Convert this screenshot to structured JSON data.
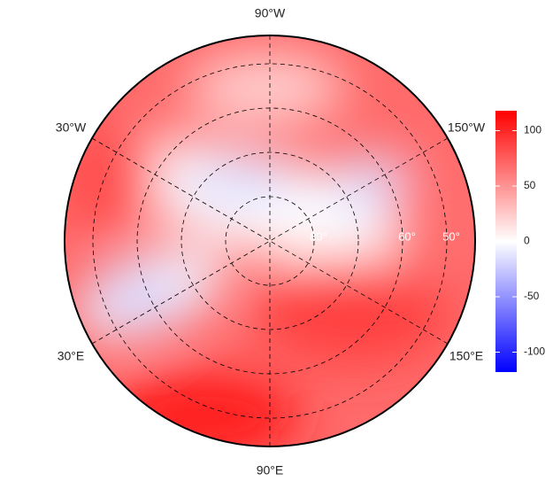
{
  "lon_labels": [
    "90°W",
    "30°W",
    "150°W",
    "30°E",
    "150°E",
    "90°E"
  ],
  "lat_labels": [
    "80°",
    "60°",
    "50°"
  ],
  "colorbar": {
    "lim": [
      -118,
      118
    ],
    "ticks": [
      100,
      50,
      0,
      -50,
      -100
    ],
    "colors": [
      "#0000ff",
      "#ffffff",
      "#ff0000"
    ]
  }
}
